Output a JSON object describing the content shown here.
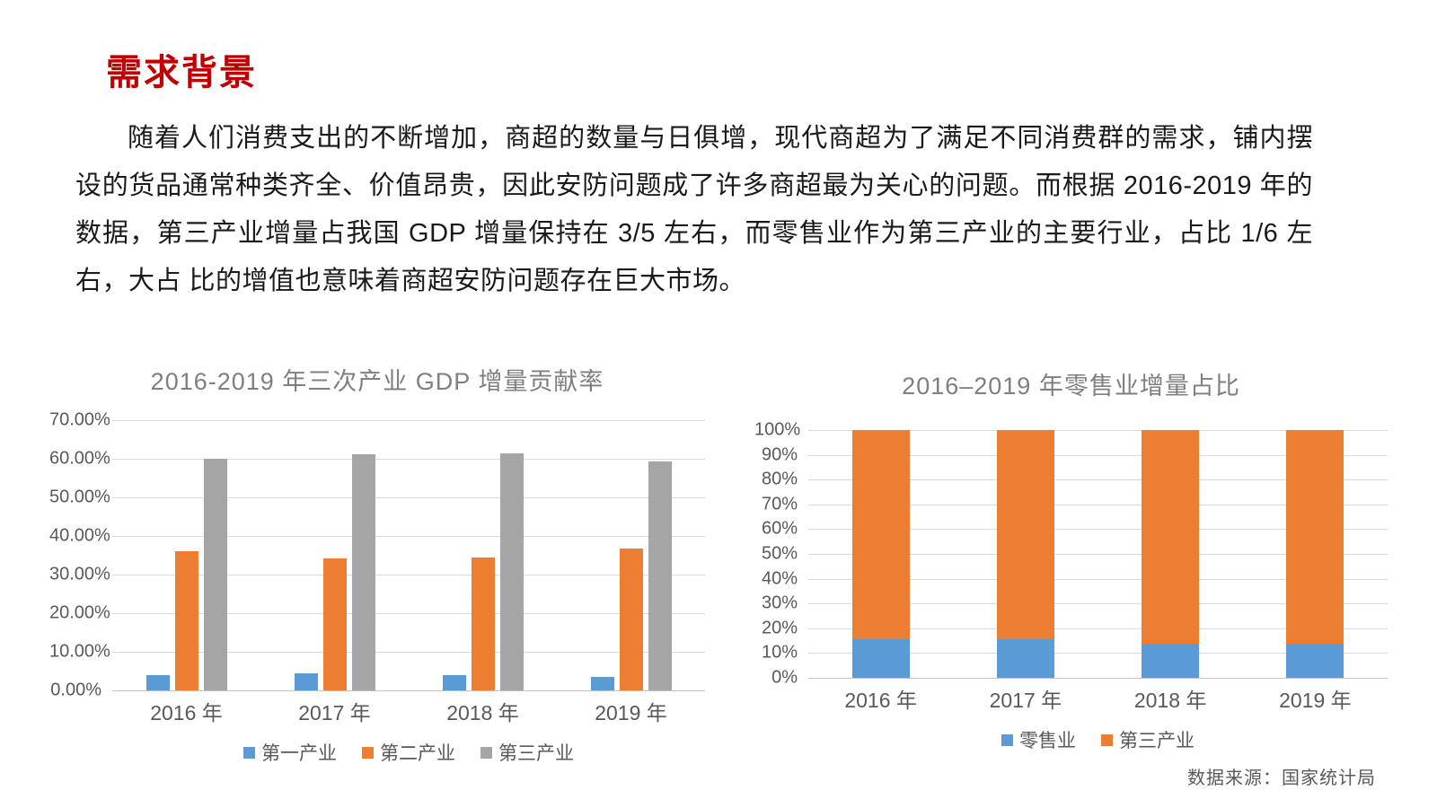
{
  "page": {
    "title": "需求背景",
    "paragraph": "随着人们消费支出的不断增加，商超的数量与日俱增，现代商超为了满足不同消费群的需求，铺内摆设的货品通常种类齐全、价值昂贵，因此安防问题成了许多商超最为关心的问题。而根据 2016-2019 年的数据，第三产业增量占我国 GDP 增量保持在 3/5 左右，而零售业作为第三产业的主要行业，占比 1/6 左右，大占 比的增值也意味着商超安防问题存在巨大市场。",
    "source_note": "数据来源：国家统计局",
    "colors": {
      "heading_red": "#C00000",
      "series_blue": "#5B9BD5",
      "series_orange": "#ED7D31",
      "series_gray": "#A5A5A5",
      "gridline": "#D9D9D9",
      "tick_text": "#595959",
      "chart_title": "#7F7F7F"
    }
  },
  "chart_data": [
    {
      "type": "bar",
      "title": "2016-2019 年三次产业 GDP 增量贡献率",
      "categories": [
        "2016 年",
        "2017 年",
        "2018 年",
        "2019 年"
      ],
      "series": [
        {
          "name": "第一产业",
          "color": "#5B9BD5",
          "values": [
            4.0,
            4.5,
            4.0,
            3.6
          ]
        },
        {
          "name": "第二产业",
          "color": "#ED7D31",
          "values": [
            36.0,
            34.2,
            34.4,
            36.8
          ]
        },
        {
          "name": "第三产业",
          "color": "#A5A5A5",
          "values": [
            60.0,
            61.2,
            61.5,
            59.3
          ]
        }
      ],
      "ylim": [
        0,
        70
      ],
      "ytick_step": 10,
      "yticks": [
        "70.00%",
        "60.00%",
        "50.00%",
        "40.00%",
        "30.00%",
        "20.00%",
        "10.00%",
        "0.00%"
      ],
      "grid": true,
      "legend_position": "bottom"
    },
    {
      "type": "stacked-bar",
      "title": "2016–2019 年零售业增量占比",
      "categories": [
        "2016 年",
        "2017 年",
        "2018 年",
        "2019 年"
      ],
      "series": [
        {
          "name": "零售业",
          "color": "#5B9BD5",
          "values": [
            15.5,
            15.5,
            13.8,
            13.8
          ]
        },
        {
          "name": "第三产业",
          "color": "#ED7D31",
          "values": [
            84.5,
            84.5,
            86.2,
            86.2
          ]
        }
      ],
      "ylim": [
        0,
        100
      ],
      "ytick_step": 10,
      "yticks": [
        "100%",
        "90%",
        "80%",
        "70%",
        "60%",
        "50%",
        "40%",
        "30%",
        "20%",
        "10%",
        "0%"
      ],
      "grid": true,
      "legend_position": "bottom"
    }
  ]
}
